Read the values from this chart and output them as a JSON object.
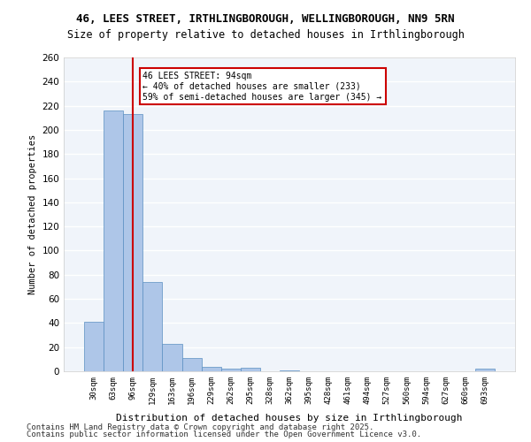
{
  "title_line1": "46, LEES STREET, IRTHLINGBOROUGH, WELLINGBOROUGH, NN9 5RN",
  "title_line2": "Size of property relative to detached houses in Irthlingborough",
  "xlabel": "Distribution of detached houses by size in Irthlingborough",
  "ylabel": "Number of detached properties",
  "categories": [
    "30sqm",
    "63sqm",
    "96sqm",
    "129sqm",
    "163sqm",
    "196sqm",
    "229sqm",
    "262sqm",
    "295sqm",
    "328sqm",
    "362sqm",
    "395sqm",
    "428sqm",
    "461sqm",
    "494sqm",
    "527sqm",
    "560sqm",
    "594sqm",
    "627sqm",
    "660sqm",
    "693sqm"
  ],
  "values": [
    41,
    216,
    213,
    74,
    23,
    11,
    4,
    2,
    3,
    0,
    1,
    0,
    0,
    0,
    0,
    0,
    0,
    0,
    0,
    0,
    2
  ],
  "bar_color": "#aec6e8",
  "bar_edge_color": "#5a8fc2",
  "vline_x": 2,
  "vline_color": "#cc0000",
  "annotation_text": "46 LEES STREET: 94sqm\n← 40% of detached houses are smaller (233)\n59% of semi-detached houses are larger (345) →",
  "annotation_box_color": "#cc0000",
  "ylim": [
    0,
    260
  ],
  "yticks": [
    0,
    20,
    40,
    60,
    80,
    100,
    120,
    140,
    160,
    180,
    200,
    220,
    240,
    260
  ],
  "background_color": "#f0f4fa",
  "grid_color": "#ffffff",
  "footer_line1": "Contains HM Land Registry data © Crown copyright and database right 2025.",
  "footer_line2": "Contains public sector information licensed under the Open Government Licence v3.0."
}
